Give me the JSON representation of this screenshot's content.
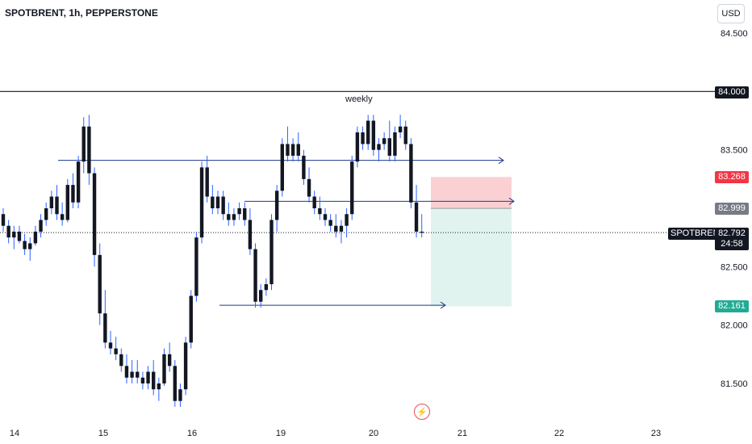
{
  "header": {
    "title": "SPOTBRENT, 1h, PEPPERSTONE",
    "currency": "USD"
  },
  "annotations": {
    "weekly_label": "weekly",
    "flash_icon": "lightning-icon"
  },
  "price_tags": {
    "level_84": "84.000",
    "stop": "83.268",
    "entry": "82.999",
    "target": "82.161",
    "symbol": "SPOTBRENT",
    "last_price": "82.792",
    "countdown": "24:58"
  },
  "colors": {
    "up": "#131722",
    "down": "#131722",
    "wick": "#2962ff",
    "line": "#1e3a8a",
    "stop_zone": "#fbd0d3",
    "target_zone": "#e1f3ee",
    "stop_tag": "#f23645",
    "target_tag": "#22ab94",
    "entry_tag": "#787b86"
  },
  "chart_data": {
    "type": "candlestick",
    "y_axis_ticks": [
      "84.500",
      "83.500",
      "82.500",
      "82.000",
      "81.500"
    ],
    "x_axis_ticks": [
      "14",
      "15",
      "16",
      "19",
      "20",
      "21",
      "22",
      "23"
    ],
    "ylim": [
      81.3,
      84.7
    ],
    "horizontal_levels": [
      {
        "name": "weekly",
        "value": 84.0,
        "style": "solid"
      },
      {
        "value": 83.41,
        "from": "14",
        "to": "21",
        "style": "arrow"
      },
      {
        "value": 83.06,
        "from": "16",
        "to": "21",
        "style": "arrow"
      },
      {
        "value": 82.17,
        "from": "16",
        "to": "20",
        "style": "arrow"
      }
    ],
    "position": {
      "type": "short",
      "entry": 82.999,
      "stop": 83.268,
      "target": 82.161
    },
    "last_price": 82.792,
    "candles": [
      [
        82.95,
        83.0,
        82.8,
        82.85
      ],
      [
        82.85,
        82.9,
        82.7,
        82.75
      ],
      [
        82.75,
        82.85,
        82.65,
        82.8
      ],
      [
        82.8,
        82.85,
        82.7,
        82.72
      ],
      [
        82.72,
        82.78,
        82.6,
        82.65
      ],
      [
        82.65,
        82.75,
        82.55,
        82.7
      ],
      [
        82.7,
        82.85,
        82.68,
        82.8
      ],
      [
        82.8,
        82.95,
        82.75,
        82.9
      ],
      [
        82.9,
        83.05,
        82.85,
        83.0
      ],
      [
        83.0,
        83.15,
        82.95,
        83.1
      ],
      [
        83.1,
        83.2,
        82.9,
        82.95
      ],
      [
        82.95,
        83.05,
        82.85,
        82.9
      ],
      [
        82.9,
        83.25,
        82.88,
        83.2
      ],
      [
        83.2,
        83.3,
        83.0,
        83.05
      ],
      [
        83.05,
        83.45,
        83.0,
        83.4
      ],
      [
        83.4,
        83.78,
        83.3,
        83.7
      ],
      [
        83.7,
        83.8,
        83.2,
        83.3
      ],
      [
        83.3,
        83.35,
        82.5,
        82.6
      ],
      [
        82.6,
        82.7,
        82.0,
        82.1
      ],
      [
        82.1,
        82.3,
        81.8,
        81.85
      ],
      [
        81.85,
        81.95,
        81.75,
        81.8
      ],
      [
        81.8,
        81.9,
        81.7,
        81.75
      ],
      [
        81.75,
        81.8,
        81.6,
        81.65
      ],
      [
        81.65,
        81.75,
        81.5,
        81.55
      ],
      [
        81.55,
        81.7,
        81.5,
        81.6
      ],
      [
        81.6,
        81.7,
        81.5,
        81.55
      ],
      [
        81.55,
        81.6,
        81.45,
        81.5
      ],
      [
        81.5,
        81.65,
        81.45,
        81.6
      ],
      [
        81.6,
        81.7,
        81.4,
        81.45
      ],
      [
        81.45,
        81.55,
        81.35,
        81.5
      ],
      [
        81.5,
        81.8,
        81.48,
        81.75
      ],
      [
        81.75,
        81.85,
        81.6,
        81.65
      ],
      [
        81.65,
        81.7,
        81.3,
        81.35
      ],
      [
        81.35,
        81.5,
        81.3,
        81.45
      ],
      [
        81.45,
        81.9,
        81.4,
        81.85
      ],
      [
        81.85,
        82.3,
        81.8,
        82.25
      ],
      [
        82.25,
        82.8,
        82.2,
        82.75
      ],
      [
        82.75,
        83.4,
        82.7,
        83.35
      ],
      [
        83.35,
        83.45,
        83.05,
        83.1
      ],
      [
        83.1,
        83.2,
        82.95,
        83.0
      ],
      [
        83.0,
        83.15,
        82.95,
        83.1
      ],
      [
        83.1,
        83.15,
        82.9,
        82.95
      ],
      [
        82.95,
        83.05,
        82.85,
        82.9
      ],
      [
        82.9,
        83.0,
        82.85,
        82.95
      ],
      [
        82.95,
        83.05,
        82.9,
        83.0
      ],
      [
        83.0,
        83.05,
        82.85,
        82.9
      ],
      [
        82.9,
        83.0,
        82.6,
        82.65
      ],
      [
        82.65,
        82.7,
        82.15,
        82.2
      ],
      [
        82.2,
        82.35,
        82.15,
        82.3
      ],
      [
        82.3,
        82.4,
        82.25,
        82.35
      ],
      [
        82.35,
        82.95,
        82.3,
        82.9
      ],
      [
        82.9,
        83.2,
        82.8,
        83.15
      ],
      [
        83.15,
        83.6,
        83.1,
        83.55
      ],
      [
        83.55,
        83.7,
        83.4,
        83.45
      ],
      [
        83.45,
        83.6,
        83.4,
        83.55
      ],
      [
        83.55,
        83.65,
        83.4,
        83.45
      ],
      [
        83.45,
        83.5,
        83.2,
        83.25
      ],
      [
        83.25,
        83.35,
        83.05,
        83.1
      ],
      [
        83.1,
        83.15,
        82.95,
        83.0
      ],
      [
        83.0,
        83.1,
        82.9,
        82.95
      ],
      [
        82.95,
        83.0,
        82.85,
        82.9
      ],
      [
        82.9,
        82.95,
        82.8,
        82.85
      ],
      [
        82.85,
        82.95,
        82.75,
        82.8
      ],
      [
        82.8,
        82.9,
        82.7,
        82.85
      ],
      [
        82.85,
        83.0,
        82.75,
        82.95
      ],
      [
        82.95,
        83.45,
        82.9,
        83.4
      ],
      [
        83.4,
        83.7,
        83.35,
        83.65
      ],
      [
        83.65,
        83.7,
        83.5,
        83.55
      ],
      [
        83.55,
        83.8,
        83.5,
        83.75
      ],
      [
        83.75,
        83.8,
        83.45,
        83.5
      ],
      [
        83.5,
        83.6,
        83.4,
        83.55
      ],
      [
        83.55,
        83.65,
        83.5,
        83.6
      ],
      [
        83.6,
        83.75,
        83.4,
        83.45
      ],
      [
        83.45,
        83.7,
        83.4,
        83.65
      ],
      [
        83.65,
        83.8,
        83.6,
        83.7
      ],
      [
        83.7,
        83.75,
        83.5,
        83.55
      ],
      [
        83.55,
        83.6,
        83.0,
        83.05
      ],
      [
        83.05,
        83.2,
        82.75,
        82.8
      ],
      [
        82.8,
        82.95,
        82.75,
        82.79
      ]
    ]
  }
}
